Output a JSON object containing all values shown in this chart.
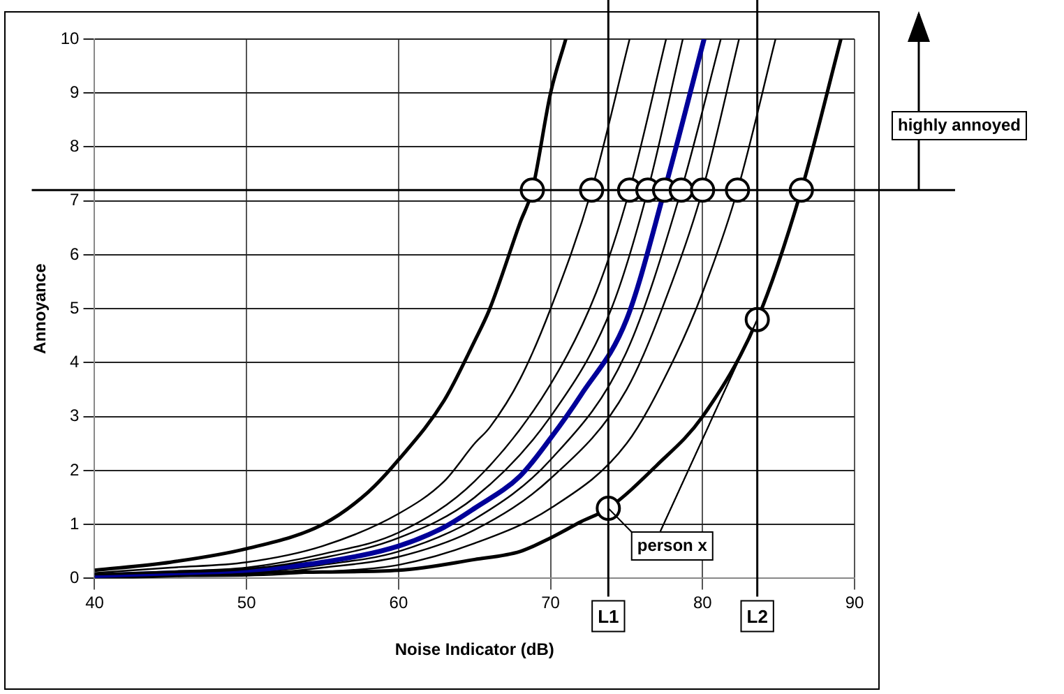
{
  "chart_data": {
    "type": "line",
    "xlabel": "Noise Indicator (dB)",
    "ylabel": "Annoyance",
    "xlim": [
      40,
      90
    ],
    "xticks": [
      40,
      50,
      60,
      70,
      80,
      90
    ],
    "ylim": [
      0,
      10
    ],
    "yticks": [
      0,
      1,
      2,
      3,
      4,
      5,
      6,
      7,
      8,
      9,
      10
    ],
    "grid": true,
    "legend": false,
    "marker": "none",
    "line_style": "solid",
    "series": [
      {
        "color": "#000000",
        "x": [
          40,
          45,
          50,
          55,
          58,
          60,
          63,
          65,
          66,
          68,
          68.8,
          70,
          71
        ],
        "values": [
          0.15,
          0.3,
          0.55,
          1.0,
          1.6,
          2.2,
          3.3,
          4.4,
          5.0,
          6.6,
          7.2,
          9.0,
          10
        ]
      },
      {
        "color": "#000000",
        "x": [
          40,
          45,
          50,
          55,
          60,
          63,
          65,
          66,
          68,
          70,
          72.7,
          75.2
        ],
        "values": [
          0.1,
          0.2,
          0.3,
          0.6,
          1.2,
          1.8,
          2.5,
          2.8,
          3.7,
          5.0,
          7.2,
          10
        ]
      },
      {
        "color": "#000000",
        "x": [
          40,
          45,
          50,
          55,
          60,
          65,
          70,
          73,
          75.2,
          77.6
        ],
        "values": [
          0.08,
          0.13,
          0.2,
          0.45,
          0.85,
          1.8,
          3.6,
          5.3,
          7.2,
          10
        ]
      },
      {
        "color": "#000000",
        "x": [
          40,
          45,
          50,
          55,
          60,
          65,
          70,
          74,
          76.4,
          78.7
        ],
        "values": [
          0.07,
          0.11,
          0.17,
          0.38,
          0.75,
          1.5,
          3.0,
          5.0,
          7.2,
          10
        ]
      },
      {
        "color": "#000099",
        "x": [
          40,
          45,
          50,
          55,
          60,
          63,
          65,
          68,
          70,
          72,
          75,
          77.5,
          80.1
        ],
        "values": [
          0.05,
          0.1,
          0.15,
          0.3,
          0.6,
          0.95,
          1.3,
          1.9,
          2.6,
          3.4,
          4.8,
          7.2,
          10
        ]
      },
      {
        "color": "#000000",
        "x": [
          40,
          45,
          50,
          55,
          60,
          65,
          70,
          75,
          78.6,
          81.2
        ],
        "values": [
          0.05,
          0.08,
          0.1,
          0.25,
          0.5,
          1.1,
          2.2,
          4.2,
          7.2,
          10
        ]
      },
      {
        "color": "#000000",
        "x": [
          40,
          45,
          50,
          55,
          60,
          65,
          70,
          75,
          78,
          80,
          82.4
        ],
        "values": [
          0.03,
          0.05,
          0.07,
          0.2,
          0.4,
          0.9,
          1.85,
          3.5,
          5.5,
          7.2,
          10
        ]
      },
      {
        "color": "#000000",
        "x": [
          40,
          45,
          50,
          55,
          60,
          65,
          70,
          75,
          78,
          80,
          82.3,
          84.8
        ],
        "values": [
          0.03,
          0.04,
          0.05,
          0.12,
          0.25,
          0.65,
          1.3,
          2.5,
          4.0,
          5.3,
          7.2,
          10
        ]
      },
      {
        "color": "#000000",
        "x": [
          40,
          45,
          50,
          55,
          60,
          65,
          68,
          70,
          72,
          73.8,
          77,
          80,
          83.6,
          86.5,
          89.1
        ],
        "values": [
          0.0,
          0.05,
          0.1,
          0.12,
          0.15,
          0.35,
          0.5,
          0.75,
          1.05,
          1.3,
          2.1,
          3.0,
          4.8,
          7.2,
          10
        ]
      },
      {
        "type": "scatter",
        "color": "#000000",
        "marker": "circle",
        "x": [
          68.8,
          72.7,
          75.2,
          76.4,
          77.5,
          78.6,
          80.0,
          82.3,
          86.5,
          73.8,
          83.6
        ],
        "values": [
          7.2,
          7.2,
          7.2,
          7.2,
          7.2,
          7.2,
          7.2,
          7.2,
          7.2,
          1.3,
          4.8
        ]
      }
    ],
    "ref_lines": [
      {
        "axis": "y",
        "value": 7.2
      },
      {
        "axis": "x",
        "value": 73.8,
        "label": "L1"
      },
      {
        "axis": "x",
        "value": 83.6,
        "label": "L2"
      }
    ],
    "annotations": [
      "highly annoyed",
      {
        "text": "person x",
        "x": 83.6,
        "y": 4.8
      }
    ]
  }
}
